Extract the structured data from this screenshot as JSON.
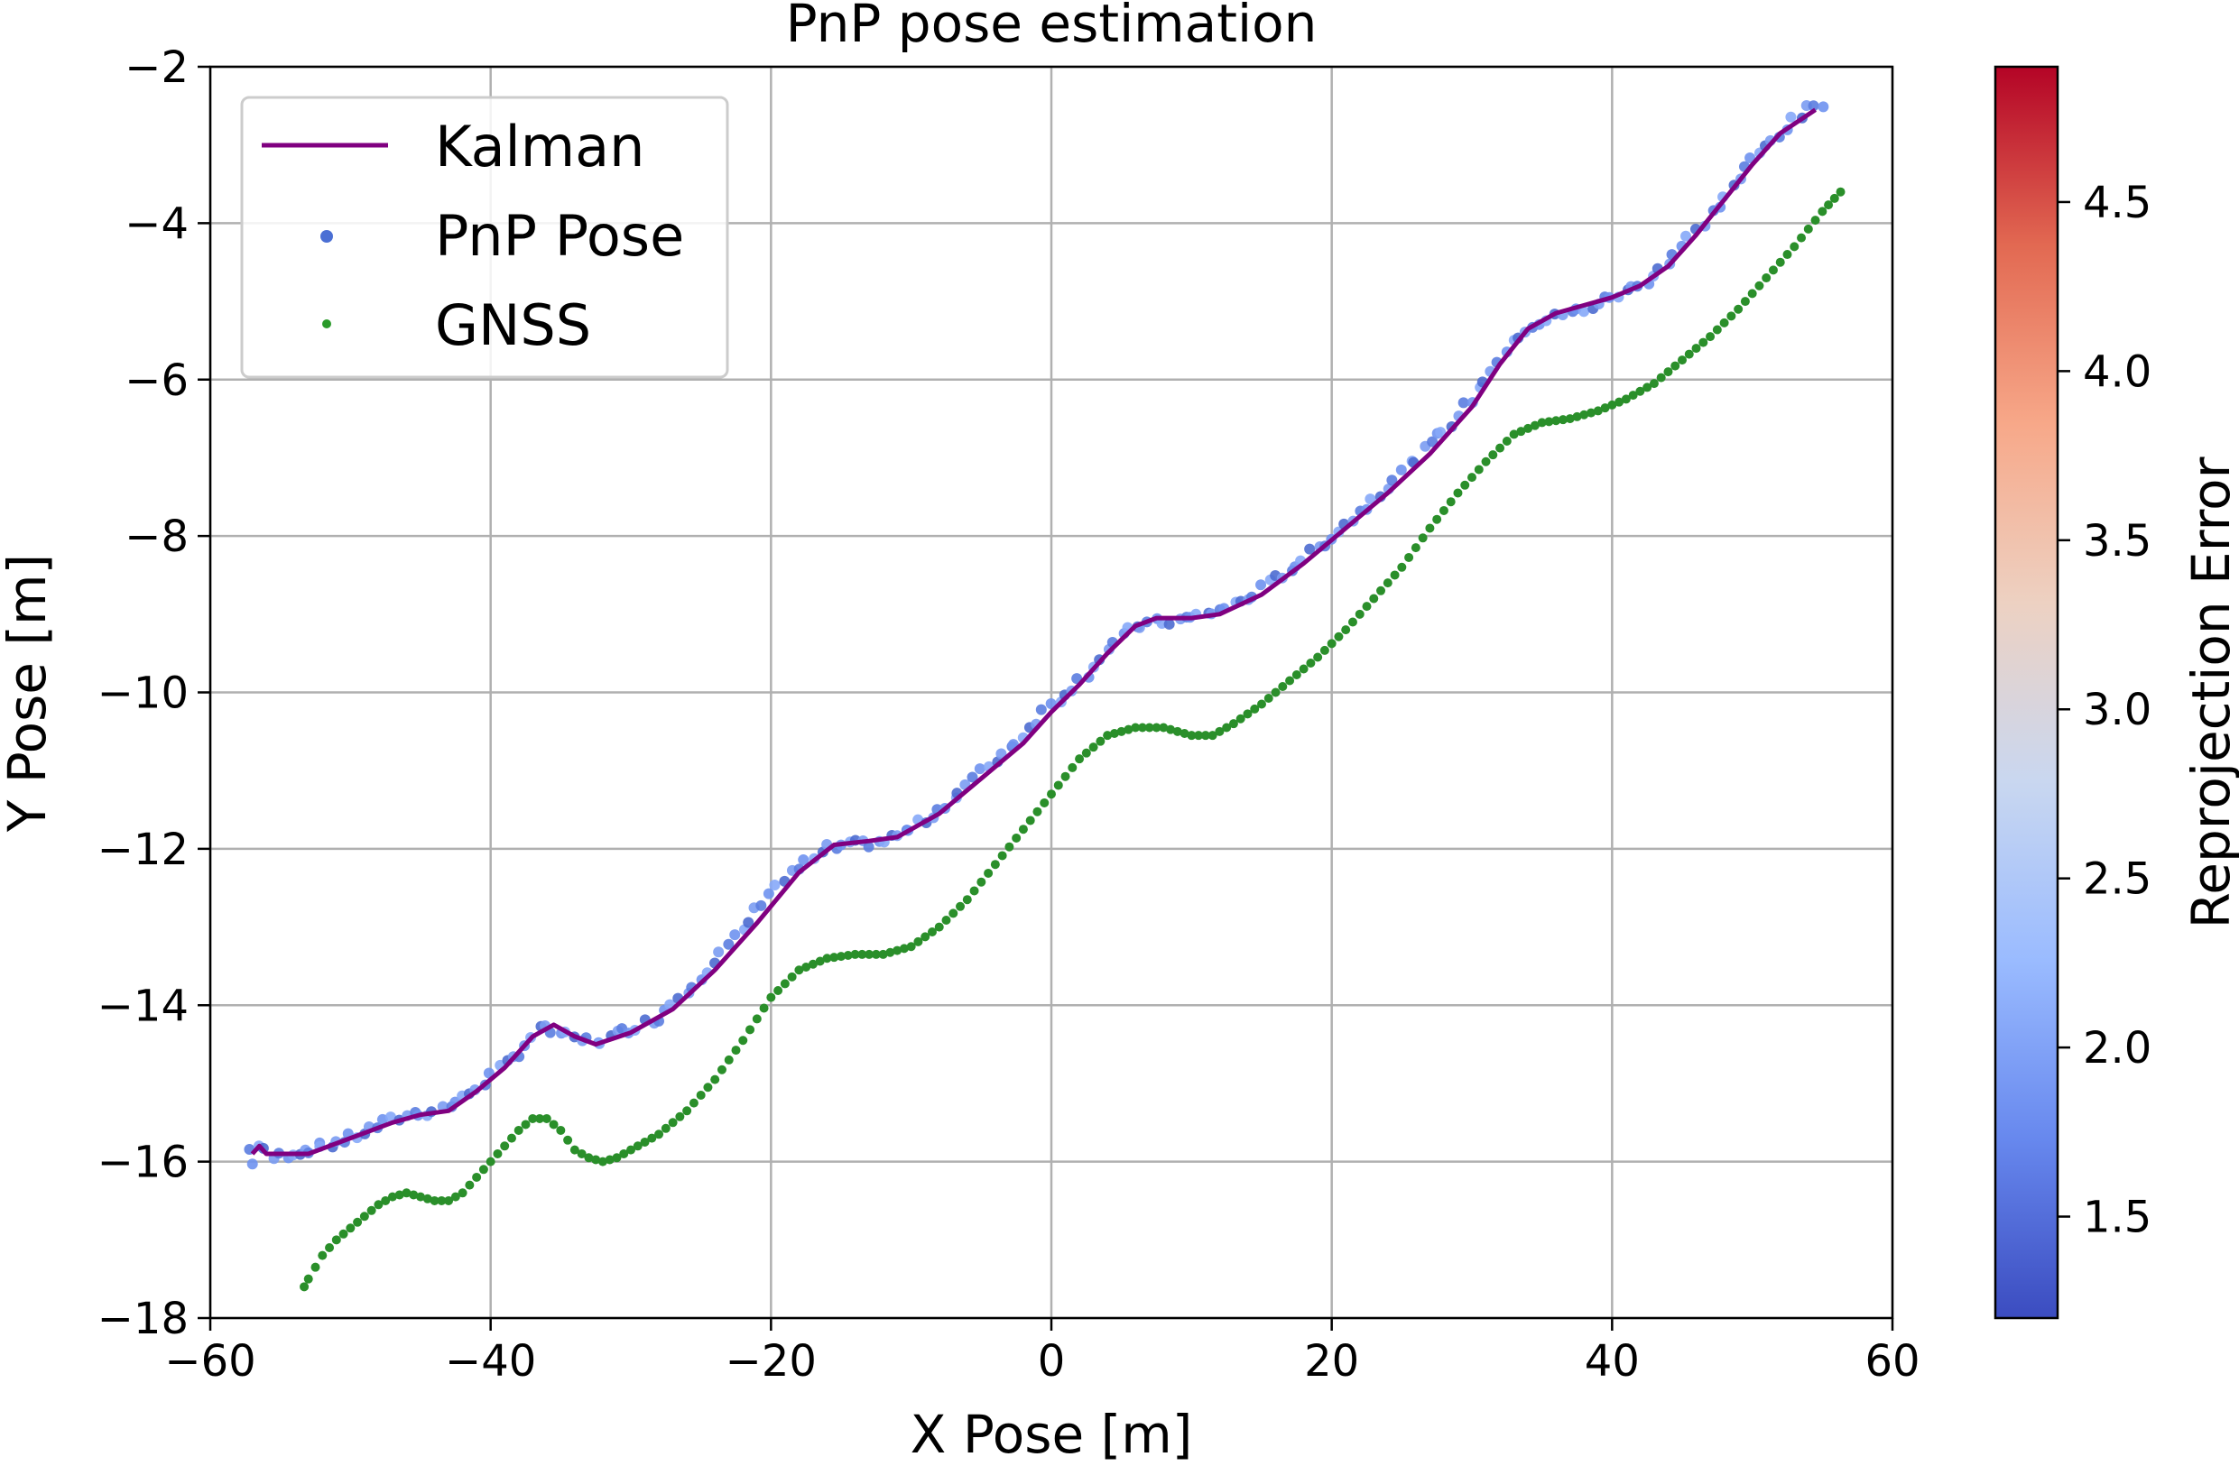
{
  "chart_data": {
    "type": "scatter",
    "title": "PnP pose estimation",
    "xlabel": "X Pose [m]",
    "ylabel": "Y Pose [m]",
    "xlim": [
      -60,
      60
    ],
    "ylim": [
      -18,
      -2
    ],
    "x_ticks": [
      -60,
      -40,
      -20,
      0,
      20,
      40,
      60
    ],
    "y_ticks": [
      -18,
      -16,
      -14,
      -12,
      -10,
      -8,
      -6,
      -4,
      -2
    ],
    "x_tick_labels": [
      "−60",
      "−40",
      "−20",
      "0",
      "20",
      "40",
      "60"
    ],
    "y_tick_labels": [
      "−18",
      "−16",
      "−14",
      "−12",
      "−10",
      "−8",
      "−6",
      "−4",
      "−2"
    ],
    "grid": true,
    "legend_position": "top-left",
    "colorbar": {
      "label": "Reprojection Error",
      "range": [
        1.2,
        4.9
      ],
      "ticks": [
        1.5,
        2.0,
        2.5,
        3.0,
        3.5,
        4.0,
        4.5
      ],
      "tick_labels": [
        "1.5",
        "2.0",
        "2.5",
        "3.0",
        "3.5",
        "4.0",
        "4.5"
      ],
      "colormap": "coolwarm",
      "colors": [
        "#3b4cc0",
        "#6788ee",
        "#9abbff",
        "#c9d7f0",
        "#edd1c2",
        "#f7a889",
        "#e26952",
        "#b40426"
      ]
    },
    "series": [
      {
        "name": "Kalman",
        "kind": "line",
        "color": "#800080",
        "points": [
          [
            -57,
            -15.9
          ],
          [
            -56.5,
            -15.8
          ],
          [
            -56,
            -15.9
          ],
          [
            -55,
            -15.9
          ],
          [
            -53,
            -15.9
          ],
          [
            -50,
            -15.7
          ],
          [
            -47,
            -15.5
          ],
          [
            -45,
            -15.4
          ],
          [
            -43,
            -15.35
          ],
          [
            -41,
            -15.1
          ],
          [
            -39,
            -14.8
          ],
          [
            -37,
            -14.4
          ],
          [
            -35.5,
            -14.25
          ],
          [
            -34,
            -14.4
          ],
          [
            -32.5,
            -14.5
          ],
          [
            -30,
            -14.35
          ],
          [
            -27,
            -14.05
          ],
          [
            -24,
            -13.55
          ],
          [
            -21,
            -12.95
          ],
          [
            -18,
            -12.3
          ],
          [
            -15.5,
            -11.95
          ],
          [
            -13,
            -11.9
          ],
          [
            -11,
            -11.85
          ],
          [
            -8,
            -11.55
          ],
          [
            -5,
            -11.1
          ],
          [
            -2,
            -10.65
          ],
          [
            0,
            -10.25
          ],
          [
            2,
            -9.9
          ],
          [
            4,
            -9.5
          ],
          [
            6,
            -9.15
          ],
          [
            7.5,
            -9.05
          ],
          [
            10,
            -9.05
          ],
          [
            12,
            -9.0
          ],
          [
            15,
            -8.75
          ],
          [
            18,
            -8.35
          ],
          [
            21,
            -7.9
          ],
          [
            24,
            -7.45
          ],
          [
            27,
            -6.95
          ],
          [
            30,
            -6.35
          ],
          [
            32,
            -5.8
          ],
          [
            34,
            -5.35
          ],
          [
            36,
            -5.15
          ],
          [
            38,
            -5.05
          ],
          [
            40,
            -4.95
          ],
          [
            42,
            -4.8
          ],
          [
            44,
            -4.55
          ],
          [
            46,
            -4.15
          ],
          [
            48,
            -3.7
          ],
          [
            50,
            -3.25
          ],
          [
            52,
            -2.85
          ],
          [
            54.5,
            -2.55
          ]
        ]
      },
      {
        "name": "PnP Pose",
        "kind": "scatter",
        "color": "#6a8fe8",
        "points": [
          [
            -57.2,
            -15.85
          ],
          [
            -56.8,
            -16.0
          ],
          [
            -56.5,
            -15.8
          ],
          [
            -55.5,
            -15.95
          ],
          [
            -54.5,
            -15.9
          ],
          [
            -52,
            -15.8
          ],
          [
            -50,
            -15.7
          ],
          [
            -48,
            -15.55
          ],
          [
            -46,
            -15.4
          ],
          [
            -44,
            -15.35
          ],
          [
            -42,
            -15.2
          ],
          [
            -40,
            -14.9
          ],
          [
            -38,
            -14.6
          ],
          [
            -36.5,
            -14.3
          ],
          [
            -35,
            -14.35
          ],
          [
            -34,
            -14.45
          ],
          [
            -32,
            -14.45
          ],
          [
            -30,
            -14.3
          ],
          [
            -28,
            -14.15
          ],
          [
            -26,
            -13.8
          ],
          [
            -24,
            -13.45
          ],
          [
            -22,
            -13.05
          ],
          [
            -20,
            -12.55
          ],
          [
            -18,
            -12.25
          ],
          [
            -16,
            -12.0
          ],
          [
            -14,
            -11.95
          ],
          [
            -12,
            -11.9
          ],
          [
            -10,
            -11.75
          ],
          [
            -8,
            -11.5
          ],
          [
            -6,
            -11.2
          ],
          [
            -4,
            -10.85
          ],
          [
            -2,
            -10.55
          ],
          [
            0,
            -10.15
          ],
          [
            2,
            -9.85
          ],
          [
            4,
            -9.45
          ],
          [
            6,
            -9.15
          ],
          [
            8,
            -9.1
          ],
          [
            10,
            -9.05
          ],
          [
            12,
            -8.95
          ],
          [
            14,
            -8.8
          ],
          [
            16,
            -8.55
          ],
          [
            18,
            -8.3
          ],
          [
            20,
            -8.0
          ],
          [
            22,
            -7.7
          ],
          [
            24,
            -7.35
          ],
          [
            26,
            -7.0
          ],
          [
            28,
            -6.65
          ],
          [
            30,
            -6.25
          ],
          [
            32,
            -5.75
          ],
          [
            34,
            -5.35
          ],
          [
            36,
            -5.2
          ],
          [
            38,
            -5.1
          ],
          [
            40,
            -4.95
          ],
          [
            42,
            -4.8
          ],
          [
            44,
            -4.5
          ],
          [
            46,
            -4.1
          ],
          [
            48,
            -3.65
          ],
          [
            50,
            -3.2
          ],
          [
            52,
            -2.85
          ],
          [
            54,
            -2.55
          ],
          [
            55,
            -2.5
          ]
        ]
      },
      {
        "name": "GNSS",
        "kind": "scatter",
        "color": "#1a8a1a",
        "points": [
          [
            -53.3,
            -17.6
          ],
          [
            -53,
            -17.5
          ],
          [
            -52,
            -17.2
          ],
          [
            -51,
            -17.0
          ],
          [
            -50,
            -16.85
          ],
          [
            -49,
            -16.7
          ],
          [
            -48,
            -16.55
          ],
          [
            -47,
            -16.45
          ],
          [
            -46,
            -16.4
          ],
          [
            -45,
            -16.45
          ],
          [
            -44,
            -16.5
          ],
          [
            -43,
            -16.5
          ],
          [
            -42,
            -16.4
          ],
          [
            -41,
            -16.2
          ],
          [
            -40,
            -16.0
          ],
          [
            -39,
            -15.8
          ],
          [
            -38,
            -15.6
          ],
          [
            -37,
            -15.45
          ],
          [
            -36,
            -15.45
          ],
          [
            -35,
            -15.6
          ],
          [
            -34,
            -15.85
          ],
          [
            -33,
            -15.95
          ],
          [
            -32,
            -16.0
          ],
          [
            -31,
            -15.95
          ],
          [
            -30,
            -15.85
          ],
          [
            -28,
            -15.65
          ],
          [
            -26,
            -15.35
          ],
          [
            -24,
            -14.95
          ],
          [
            -22,
            -14.45
          ],
          [
            -20,
            -13.9
          ],
          [
            -18,
            -13.55
          ],
          [
            -16,
            -13.4
          ],
          [
            -14,
            -13.35
          ],
          [
            -12,
            -13.35
          ],
          [
            -10,
            -13.25
          ],
          [
            -8,
            -13.0
          ],
          [
            -6,
            -12.65
          ],
          [
            -4,
            -12.2
          ],
          [
            -2,
            -11.75
          ],
          [
            0,
            -11.3
          ],
          [
            2,
            -10.85
          ],
          [
            4,
            -10.55
          ],
          [
            6,
            -10.45
          ],
          [
            8,
            -10.45
          ],
          [
            10,
            -10.55
          ],
          [
            11.5,
            -10.55
          ],
          [
            13,
            -10.4
          ],
          [
            15,
            -10.15
          ],
          [
            17,
            -9.85
          ],
          [
            19,
            -9.55
          ],
          [
            21,
            -9.2
          ],
          [
            23,
            -8.8
          ],
          [
            25,
            -8.4
          ],
          [
            27,
            -7.9
          ],
          [
            29,
            -7.45
          ],
          [
            31,
            -7.05
          ],
          [
            33,
            -6.7
          ],
          [
            35,
            -6.55
          ],
          [
            37,
            -6.5
          ],
          [
            39,
            -6.4
          ],
          [
            41,
            -6.25
          ],
          [
            43,
            -6.05
          ],
          [
            45,
            -5.75
          ],
          [
            47,
            -5.45
          ],
          [
            49,
            -5.1
          ],
          [
            51,
            -4.7
          ],
          [
            53,
            -4.3
          ],
          [
            55,
            -3.85
          ],
          [
            56.3,
            -3.6
          ]
        ]
      }
    ]
  }
}
